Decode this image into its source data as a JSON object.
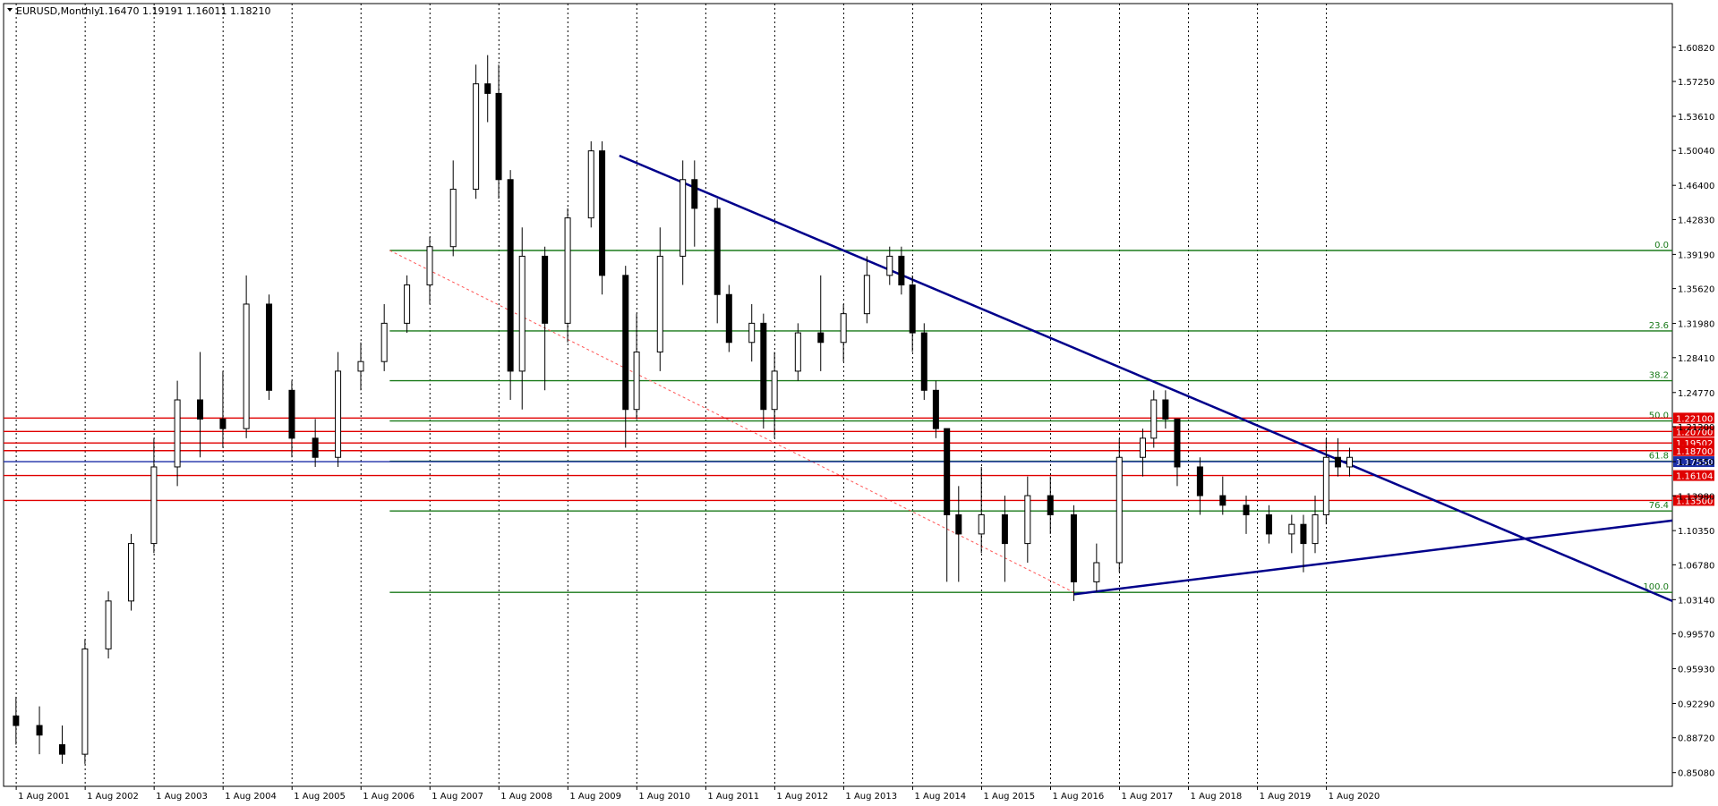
{
  "window": {
    "symbol_title": "EURUSD,Monthly",
    "ohlc": "1.16470 1.19191 1.16011 1.18210"
  },
  "colors": {
    "grid": "#000000",
    "fib": "#1a7a1a",
    "hline_red": "#e00000",
    "trendline": "#00008b",
    "bull_candle": "#ffffff",
    "bear_candle": "#000000",
    "diagonal": "#ff5555",
    "current_price_bg": "#1c2fa8"
  },
  "chart_data": {
    "type": "candlestick",
    "title": "EURUSD,Monthly",
    "timeframe": "Monthly",
    "x_ticks": [
      "1 Aug 2001",
      "1 Aug 2002",
      "1 Aug 2003",
      "1 Aug 2004",
      "1 Aug 2005",
      "1 Aug 2006",
      "1 Aug 2007",
      "1 Aug 2008",
      "1 Aug 2009",
      "1 Aug 2010",
      "1 Aug 2011",
      "1 Aug 2012",
      "1 Aug 2013",
      "1 Aug 2014",
      "1 Aug 2015",
      "1 Aug 2016",
      "1 Aug 2017",
      "1 Aug 2018",
      "1 Aug 2019",
      "1 Aug 2020"
    ],
    "y_ticks": [
      "1.60820",
      "1.57250",
      "1.53610",
      "1.50040",
      "1.46400",
      "1.42830",
      "1.39190",
      "1.35620",
      "1.31980",
      "1.28410",
      "1.24770",
      "1.21200",
      "1.17550",
      "1.13980",
      "1.10350",
      "1.06780",
      "1.03140",
      "0.99570",
      "0.95930",
      "0.92290",
      "0.88720",
      "0.85080"
    ],
    "ylim": [
      0.8365,
      1.6538
    ],
    "xlim": [
      2001.4,
      2025.6
    ],
    "grid": "vertical dotted",
    "series": [
      {
        "t": 2001.58,
        "o": 0.91,
        "h": 0.93,
        "l": 0.88,
        "c": 0.9
      },
      {
        "t": 2001.92,
        "o": 0.9,
        "h": 0.92,
        "l": 0.87,
        "c": 0.89
      },
      {
        "t": 2002.25,
        "o": 0.88,
        "h": 0.9,
        "l": 0.86,
        "c": 0.87
      },
      {
        "t": 2002.58,
        "o": 0.87,
        "h": 0.99,
        "l": 0.86,
        "c": 0.98
      },
      {
        "t": 2002.92,
        "o": 0.98,
        "h": 1.04,
        "l": 0.97,
        "c": 1.03
      },
      {
        "t": 2003.25,
        "o": 1.03,
        "h": 1.1,
        "l": 1.02,
        "c": 1.09
      },
      {
        "t": 2003.58,
        "o": 1.09,
        "h": 1.2,
        "l": 1.08,
        "c": 1.17
      },
      {
        "t": 2003.92,
        "o": 1.17,
        "h": 1.26,
        "l": 1.15,
        "c": 1.24
      },
      {
        "t": 2004.25,
        "o": 1.24,
        "h": 1.29,
        "l": 1.18,
        "c": 1.22
      },
      {
        "t": 2004.58,
        "o": 1.22,
        "h": 1.27,
        "l": 1.19,
        "c": 1.21
      },
      {
        "t": 2004.92,
        "o": 1.21,
        "h": 1.37,
        "l": 1.2,
        "c": 1.34
      },
      {
        "t": 2005.25,
        "o": 1.34,
        "h": 1.35,
        "l": 1.24,
        "c": 1.25
      },
      {
        "t": 2005.58,
        "o": 1.25,
        "h": 1.26,
        "l": 1.18,
        "c": 1.2
      },
      {
        "t": 2005.92,
        "o": 1.2,
        "h": 1.22,
        "l": 1.17,
        "c": 1.18
      },
      {
        "t": 2006.25,
        "o": 1.18,
        "h": 1.29,
        "l": 1.17,
        "c": 1.27
      },
      {
        "t": 2006.58,
        "o": 1.27,
        "h": 1.3,
        "l": 1.25,
        "c": 1.28
      },
      {
        "t": 2006.92,
        "o": 1.28,
        "h": 1.34,
        "l": 1.27,
        "c": 1.32
      },
      {
        "t": 2007.25,
        "o": 1.32,
        "h": 1.37,
        "l": 1.31,
        "c": 1.36
      },
      {
        "t": 2007.58,
        "o": 1.36,
        "h": 1.41,
        "l": 1.34,
        "c": 1.4
      },
      {
        "t": 2007.92,
        "o": 1.4,
        "h": 1.49,
        "l": 1.39,
        "c": 1.46
      },
      {
        "t": 2008.25,
        "o": 1.46,
        "h": 1.59,
        "l": 1.45,
        "c": 1.57
      },
      {
        "t": 2008.42,
        "o": 1.57,
        "h": 1.6,
        "l": 1.53,
        "c": 1.56
      },
      {
        "t": 2008.58,
        "o": 1.56,
        "h": 1.59,
        "l": 1.45,
        "c": 1.47
      },
      {
        "t": 2008.75,
        "o": 1.47,
        "h": 1.48,
        "l": 1.24,
        "c": 1.27
      },
      {
        "t": 2008.92,
        "o": 1.27,
        "h": 1.42,
        "l": 1.23,
        "c": 1.39
      },
      {
        "t": 2009.25,
        "o": 1.39,
        "h": 1.4,
        "l": 1.25,
        "c": 1.32
      },
      {
        "t": 2009.58,
        "o": 1.32,
        "h": 1.44,
        "l": 1.3,
        "c": 1.43
      },
      {
        "t": 2009.92,
        "o": 1.43,
        "h": 1.51,
        "l": 1.42,
        "c": 1.5
      },
      {
        "t": 2010.08,
        "o": 1.5,
        "h": 1.51,
        "l": 1.35,
        "c": 1.37
      },
      {
        "t": 2010.42,
        "o": 1.37,
        "h": 1.38,
        "l": 1.19,
        "c": 1.23
      },
      {
        "t": 2010.58,
        "o": 1.23,
        "h": 1.33,
        "l": 1.22,
        "c": 1.29
      },
      {
        "t": 2010.92,
        "o": 1.29,
        "h": 1.42,
        "l": 1.27,
        "c": 1.39
      },
      {
        "t": 2011.25,
        "o": 1.39,
        "h": 1.49,
        "l": 1.36,
        "c": 1.47
      },
      {
        "t": 2011.42,
        "o": 1.47,
        "h": 1.49,
        "l": 1.4,
        "c": 1.44
      },
      {
        "t": 2011.75,
        "o": 1.44,
        "h": 1.45,
        "l": 1.32,
        "c": 1.35
      },
      {
        "t": 2011.92,
        "o": 1.35,
        "h": 1.36,
        "l": 1.29,
        "c": 1.3
      },
      {
        "t": 2012.25,
        "o": 1.3,
        "h": 1.34,
        "l": 1.28,
        "c": 1.32
      },
      {
        "t": 2012.42,
        "o": 1.32,
        "h": 1.33,
        "l": 1.21,
        "c": 1.23
      },
      {
        "t": 2012.58,
        "o": 1.23,
        "h": 1.29,
        "l": 1.2,
        "c": 1.27
      },
      {
        "t": 2012.92,
        "o": 1.27,
        "h": 1.32,
        "l": 1.26,
        "c": 1.31
      },
      {
        "t": 2013.25,
        "o": 1.31,
        "h": 1.37,
        "l": 1.27,
        "c": 1.3
      },
      {
        "t": 2013.58,
        "o": 1.3,
        "h": 1.34,
        "l": 1.28,
        "c": 1.33
      },
      {
        "t": 2013.92,
        "o": 1.33,
        "h": 1.39,
        "l": 1.32,
        "c": 1.37
      },
      {
        "t": 2014.25,
        "o": 1.37,
        "h": 1.4,
        "l": 1.36,
        "c": 1.39
      },
      {
        "t": 2014.42,
        "o": 1.39,
        "h": 1.4,
        "l": 1.35,
        "c": 1.36
      },
      {
        "t": 2014.58,
        "o": 1.36,
        "h": 1.37,
        "l": 1.29,
        "c": 1.31
      },
      {
        "t": 2014.75,
        "o": 1.31,
        "h": 1.32,
        "l": 1.24,
        "c": 1.25
      },
      {
        "t": 2014.92,
        "o": 1.25,
        "h": 1.26,
        "l": 1.2,
        "c": 1.21
      },
      {
        "t": 2015.08,
        "o": 1.21,
        "h": 1.21,
        "l": 1.05,
        "c": 1.12
      },
      {
        "t": 2015.25,
        "o": 1.12,
        "h": 1.15,
        "l": 1.05,
        "c": 1.1
      },
      {
        "t": 2015.58,
        "o": 1.1,
        "h": 1.17,
        "l": 1.08,
        "c": 1.12
      },
      {
        "t": 2015.92,
        "o": 1.12,
        "h": 1.14,
        "l": 1.05,
        "c": 1.09
      },
      {
        "t": 2016.25,
        "o": 1.09,
        "h": 1.16,
        "l": 1.07,
        "c": 1.14
      },
      {
        "t": 2016.58,
        "o": 1.14,
        "h": 1.16,
        "l": 1.1,
        "c": 1.12
      },
      {
        "t": 2016.92,
        "o": 1.12,
        "h": 1.13,
        "l": 1.03,
        "c": 1.05
      },
      {
        "t": 2017.25,
        "o": 1.05,
        "h": 1.09,
        "l": 1.04,
        "c": 1.07
      },
      {
        "t": 2017.58,
        "o": 1.07,
        "h": 1.2,
        "l": 1.06,
        "c": 1.18
      },
      {
        "t": 2017.92,
        "o": 1.18,
        "h": 1.21,
        "l": 1.16,
        "c": 1.2
      },
      {
        "t": 2018.08,
        "o": 1.2,
        "h": 1.25,
        "l": 1.19,
        "c": 1.24
      },
      {
        "t": 2018.25,
        "o": 1.24,
        "h": 1.25,
        "l": 1.21,
        "c": 1.22
      },
      {
        "t": 2018.42,
        "o": 1.22,
        "h": 1.22,
        "l": 1.15,
        "c": 1.17
      },
      {
        "t": 2018.75,
        "o": 1.17,
        "h": 1.18,
        "l": 1.12,
        "c": 1.14
      },
      {
        "t": 2019.08,
        "o": 1.14,
        "h": 1.16,
        "l": 1.12,
        "c": 1.13
      },
      {
        "t": 2019.42,
        "o": 1.13,
        "h": 1.14,
        "l": 1.1,
        "c": 1.12
      },
      {
        "t": 2019.75,
        "o": 1.12,
        "h": 1.13,
        "l": 1.09,
        "c": 1.1
      },
      {
        "t": 2020.08,
        "o": 1.1,
        "h": 1.12,
        "l": 1.08,
        "c": 1.11
      },
      {
        "t": 2020.25,
        "o": 1.11,
        "h": 1.12,
        "l": 1.06,
        "c": 1.09
      },
      {
        "t": 2020.42,
        "o": 1.09,
        "h": 1.14,
        "l": 1.08,
        "c": 1.12
      },
      {
        "t": 2020.58,
        "o": 1.12,
        "h": 1.2,
        "l": 1.11,
        "c": 1.18
      },
      {
        "t": 2020.75,
        "o": 1.18,
        "h": 1.2,
        "l": 1.16,
        "c": 1.17
      },
      {
        "t": 2020.92,
        "o": 1.17,
        "h": 1.19,
        "l": 1.16,
        "c": 1.18
      }
    ],
    "fib_levels": [
      {
        "label": "0.0",
        "price": 1.396
      },
      {
        "label": "23.6",
        "price": 1.312
      },
      {
        "label": "38.2",
        "price": 1.26
      },
      {
        "label": "50.0",
        "price": 1.218
      },
      {
        "label": "61.8",
        "price": 1.176
      },
      {
        "label": "76.4",
        "price": 1.124
      },
      {
        "label": "100.0",
        "price": 1.039
      }
    ],
    "horizontal_lines": [
      {
        "price": 1.221,
        "tag": "1.22100"
      },
      {
        "price": 1.207,
        "tag": "1.20700"
      },
      {
        "price": 1.195,
        "tag": "1.19502"
      },
      {
        "price": 1.187,
        "tag": "1.18700"
      },
      {
        "price": 1.161,
        "tag": "1.16104"
      },
      {
        "price": 1.135,
        "tag": "1.13500"
      }
    ],
    "current_price": {
      "price": 1.1755,
      "tag": "1.17550"
    },
    "trendlines": [
      {
        "t1": 2010.33,
        "p1": 1.495,
        "t2": 2025.6,
        "p2": 1.03
      },
      {
        "t1": 2016.92,
        "p1": 1.037,
        "t2": 2025.6,
        "p2": 1.114
      }
    ],
    "fib_anchor_line": {
      "t1": 2007.0,
      "p1": 1.396,
      "t2": 2016.92,
      "p2": 1.039
    }
  }
}
